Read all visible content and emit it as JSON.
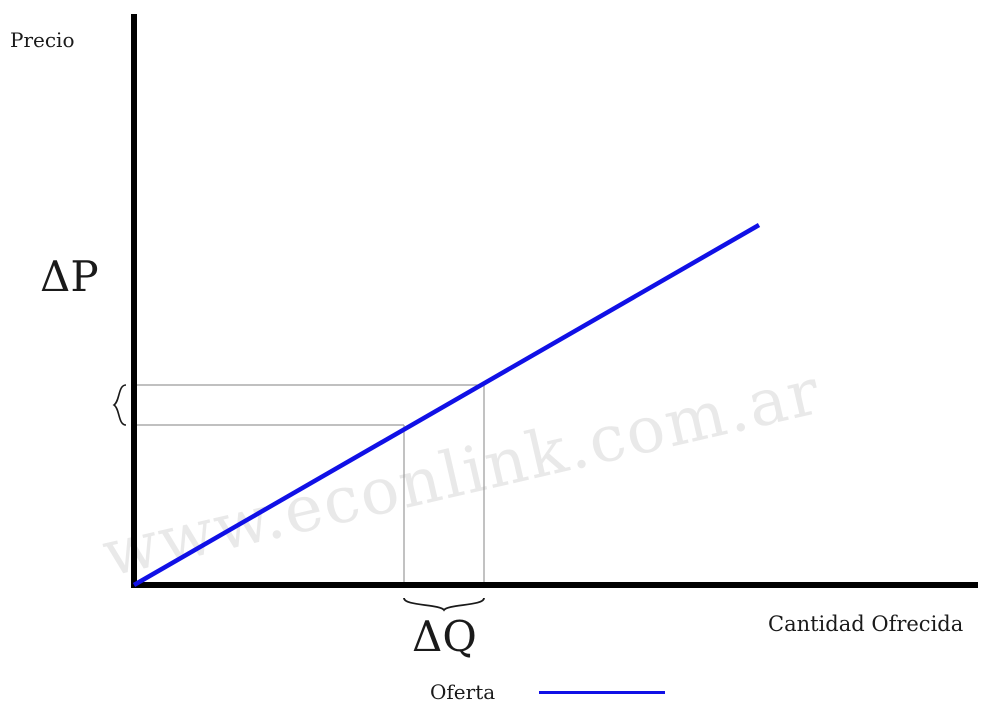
{
  "chart_data": {
    "type": "line",
    "ylabel": "Precio",
    "xlabel": "Cantidad Ofrecida",
    "delta_price_label": "ΔP",
    "delta_quantity_label": "ΔQ",
    "series": [
      {
        "name": "Oferta",
        "color": "#1010e6",
        "x": [
          0,
          625
        ],
        "y": [
          0,
          360
        ]
      }
    ],
    "guide_points": [
      {
        "x": 270,
        "y": 160
      },
      {
        "x": 350,
        "y": 200
      }
    ],
    "xlim": [
      0,
      850
    ],
    "ylim": [
      0,
      570
    ],
    "grid": false,
    "legend": "bottom"
  },
  "watermark": "www.econlink.com.ar"
}
